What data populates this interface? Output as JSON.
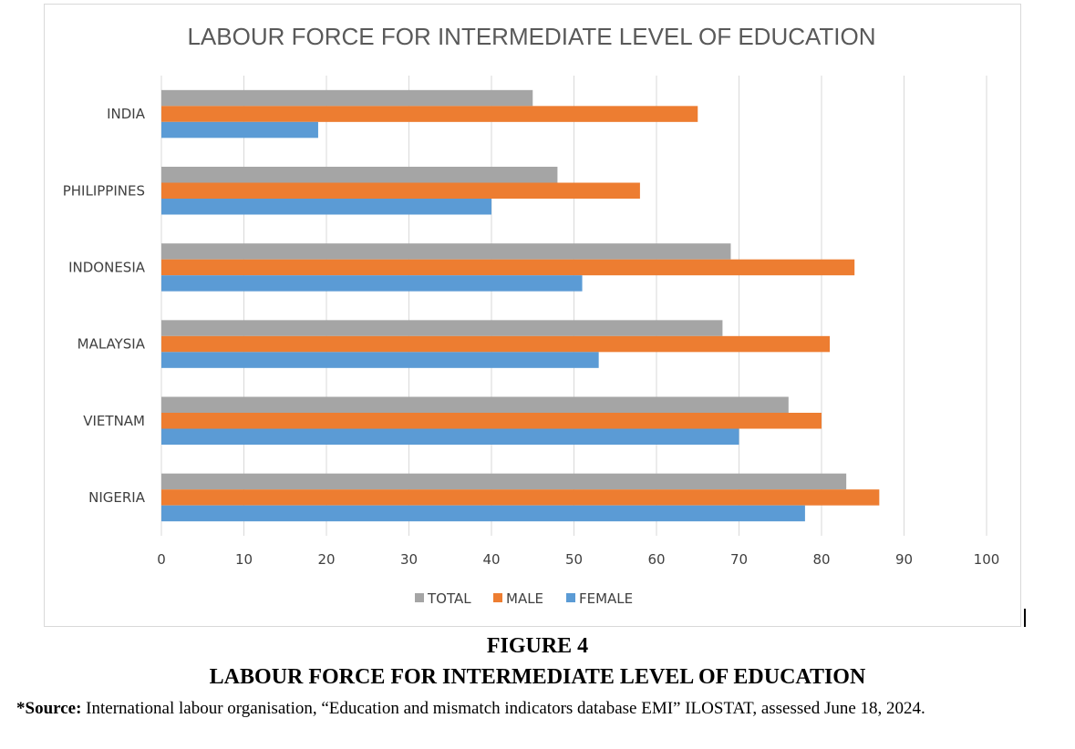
{
  "chart_data": {
    "type": "bar",
    "orientation": "horizontal",
    "title": "LABOUR FORCE FOR INTERMEDIATE LEVEL OF EDUCATION",
    "categories": [
      "INDIA",
      "PHILIPPINES",
      "INDONESIA",
      "MALAYSIA",
      "VIETNAM",
      "NIGERIA"
    ],
    "series": [
      {
        "name": "TOTAL",
        "color": "#a5a5a5",
        "values": [
          45,
          48,
          69,
          68,
          76,
          83
        ]
      },
      {
        "name": "MALE",
        "color": "#ed7d31",
        "values": [
          65,
          58,
          84,
          81,
          80,
          87
        ]
      },
      {
        "name": "FEMALE",
        "color": "#5b9bd5",
        "values": [
          19,
          40,
          51,
          53,
          70,
          78
        ]
      }
    ],
    "xlim": [
      0,
      100
    ],
    "xticks": [
      0,
      10,
      20,
      30,
      40,
      50,
      60,
      70,
      80,
      90,
      100
    ],
    "grid": true,
    "legend_position": "bottom"
  },
  "caption": {
    "figure_number": "FIGURE 4",
    "title": "LABOUR FORCE FOR INTERMEDIATE LEVEL OF EDUCATION",
    "source_label": "*Source:",
    "source_text": "International labour organisation, “Education and mismatch indicators database EMI” ILOSTAT, assessed June 18, 2024."
  }
}
